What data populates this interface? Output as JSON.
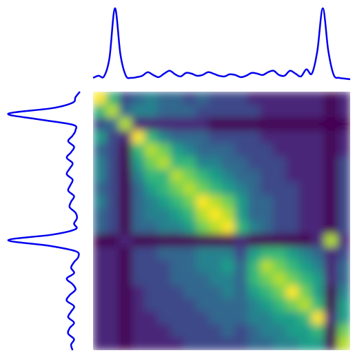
{
  "chart_data": [
    {
      "type": "line",
      "position": "top",
      "color": "#0000ee",
      "values": [
        2,
        5,
        4,
        30,
        100,
        35,
        5,
        2,
        3,
        5,
        10,
        6,
        3,
        8,
        12,
        7,
        4,
        9,
        8,
        5,
        6,
        10,
        8,
        5,
        4,
        7,
        6,
        3,
        5,
        9,
        8,
        6,
        10,
        12,
        6,
        5,
        12,
        8,
        4,
        14,
        8,
        40,
        100,
        40,
        6,
        2,
        1,
        0
      ]
    },
    {
      "type": "line",
      "position": "left",
      "color": "#0000ee",
      "values": [
        2,
        8,
        12,
        40,
        100,
        60,
        12,
        8,
        12,
        18,
        10,
        14,
        20,
        12,
        16,
        20,
        12,
        15,
        18,
        10,
        14,
        16,
        8,
        6,
        10,
        8,
        40,
        100,
        45,
        8,
        4,
        10,
        14,
        10,
        20,
        12,
        8,
        16,
        20,
        10,
        14,
        18,
        10,
        16,
        18,
        10,
        14,
        12
      ]
    },
    {
      "type": "heatmap",
      "colormap": "viridis",
      "clim": [
        0,
        9
      ],
      "values": [
        [
          9,
          6,
          2,
          3,
          4,
          3,
          3,
          2,
          3,
          2,
          2,
          2,
          1,
          1,
          1,
          1,
          1,
          1,
          0,
          1
        ],
        [
          6,
          8,
          3,
          4,
          4,
          3,
          3,
          3,
          2,
          2,
          2,
          2,
          2,
          1,
          1,
          1,
          1,
          1,
          0,
          1
        ],
        [
          2,
          3,
          8,
          1,
          1,
          1,
          1,
          1,
          1,
          0,
          0,
          0,
          0,
          0,
          0,
          0,
          0,
          0,
          0,
          0
        ],
        [
          5,
          2,
          1,
          9,
          6,
          4,
          3,
          3,
          3,
          2,
          2,
          2,
          2,
          1,
          1,
          1,
          1,
          1,
          0,
          1
        ],
        [
          3,
          2,
          0,
          6,
          8,
          7,
          5,
          4,
          3,
          3,
          3,
          2,
          2,
          2,
          1,
          1,
          1,
          1,
          0,
          1
        ],
        [
          4,
          2,
          0,
          5,
          7,
          8,
          6,
          6,
          4,
          4,
          3,
          3,
          2,
          2,
          2,
          1,
          1,
          1,
          0,
          2
        ],
        [
          4,
          2,
          0,
          4,
          6,
          6,
          8,
          7,
          6,
          5,
          4,
          3,
          3,
          2,
          2,
          1,
          1,
          1,
          0,
          2
        ],
        [
          3,
          2,
          0,
          3,
          5,
          6,
          7,
          8,
          7,
          6,
          5,
          4,
          3,
          2,
          2,
          2,
          1,
          1,
          0,
          2
        ],
        [
          4,
          2,
          0,
          3,
          4,
          5,
          6,
          7,
          9,
          8,
          7,
          5,
          3,
          3,
          2,
          2,
          1,
          1,
          0,
          2
        ],
        [
          3,
          2,
          0,
          3,
          4,
          4,
          5,
          6,
          8,
          9,
          8,
          5,
          3,
          3,
          2,
          2,
          1,
          1,
          0,
          2
        ],
        [
          3,
          2,
          0,
          3,
          3,
          4,
          4,
          5,
          7,
          8,
          9,
          6,
          4,
          3,
          2,
          2,
          1,
          1,
          0,
          2
        ],
        [
          0,
          0,
          1,
          0,
          0,
          0,
          0,
          0,
          0,
          0,
          0,
          1,
          0,
          0,
          0,
          0,
          0,
          1,
          8,
          1
        ],
        [
          1,
          1,
          0,
          2,
          2,
          3,
          3,
          3,
          4,
          4,
          4,
          2,
          5,
          6,
          6,
          5,
          4,
          3,
          1,
          2
        ],
        [
          1,
          1,
          0,
          2,
          2,
          2,
          3,
          3,
          4,
          4,
          5,
          3,
          6,
          8,
          7,
          6,
          5,
          4,
          1,
          3
        ],
        [
          1,
          1,
          0,
          2,
          2,
          2,
          3,
          3,
          3,
          4,
          4,
          3,
          6,
          7,
          8,
          7,
          6,
          5,
          1,
          3
        ],
        [
          1,
          1,
          0,
          1,
          2,
          2,
          2,
          3,
          3,
          3,
          4,
          3,
          5,
          6,
          7,
          9,
          7,
          5,
          0,
          4
        ],
        [
          1,
          1,
          0,
          1,
          2,
          2,
          2,
          2,
          3,
          3,
          3,
          3,
          4,
          5,
          6,
          7,
          8,
          6,
          0,
          5
        ],
        [
          1,
          1,
          0,
          1,
          1,
          2,
          2,
          2,
          2,
          3,
          3,
          3,
          4,
          4,
          5,
          5,
          6,
          9,
          1,
          5
        ],
        [
          1,
          1,
          0,
          1,
          1,
          1,
          2,
          2,
          2,
          2,
          3,
          2,
          3,
          4,
          4,
          5,
          5,
          6,
          0,
          7
        ],
        [
          1,
          1,
          0,
          1,
          1,
          1,
          1,
          2,
          2,
          2,
          2,
          2,
          3,
          3,
          4,
          4,
          5,
          5,
          0,
          8
        ]
      ]
    }
  ]
}
